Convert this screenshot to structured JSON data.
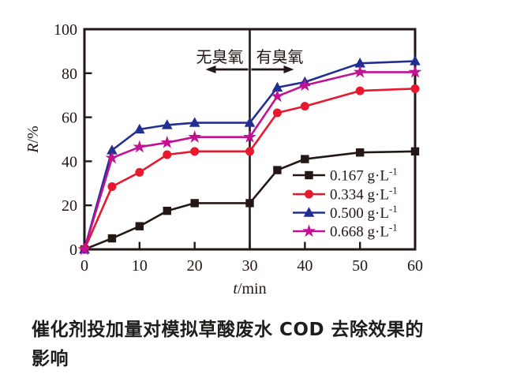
{
  "figure": {
    "caption_line1": "催化剂投加量对模拟草酸废水 COD 去除效果的",
    "caption_line2": "影响"
  },
  "chart_data": {
    "type": "line",
    "title": "",
    "xlabel": "t/min",
    "ylabel": "R/%",
    "xlim": [
      0,
      60
    ],
    "ylim": [
      0,
      100
    ],
    "x_ticks": [
      0,
      10,
      20,
      30,
      40,
      50,
      60
    ],
    "y_ticks": [
      0,
      20,
      40,
      60,
      80,
      100
    ],
    "grid": false,
    "divider_x": 30,
    "annotations": {
      "left_label": "无臭氧",
      "right_label": "有臭氧",
      "left_arrow": "points-left",
      "right_arrow": "points-right"
    },
    "x": [
      0,
      5,
      10,
      15,
      20,
      30,
      35,
      40,
      50,
      60
    ],
    "series": [
      {
        "name": "0.167 g·L⁻¹",
        "value": "0.167",
        "marker": "square",
        "color": "#231815",
        "values": [
          0,
          5,
          10.5,
          17.5,
          21,
          21,
          36,
          41,
          44,
          44.5
        ]
      },
      {
        "name": "0.334 g·L⁻¹",
        "value": "0.334",
        "marker": "circle",
        "color": "#e8182f",
        "values": [
          0,
          28.5,
          35,
          43,
          44.5,
          44.5,
          62,
          65,
          72,
          73
        ]
      },
      {
        "name": "0.500 g·L⁻¹",
        "value": "0.500",
        "marker": "triangle",
        "color": "#232e92",
        "values": [
          0,
          45,
          54.5,
          56.5,
          57.5,
          57.5,
          73.5,
          76,
          84.5,
          85.5
        ]
      },
      {
        "name": "0.668 g·L⁻¹",
        "value": "0.668",
        "marker": "star",
        "color": "#c41193",
        "values": [
          0,
          41.5,
          46.5,
          48.5,
          51,
          51,
          69.5,
          74.5,
          80.5,
          80.5
        ]
      }
    ],
    "legend": {
      "position": "inside-lower-right",
      "unit_base": "g·L",
      "unit_sup": "-1"
    },
    "axis_color": "#231815",
    "text_color": "#231815"
  }
}
